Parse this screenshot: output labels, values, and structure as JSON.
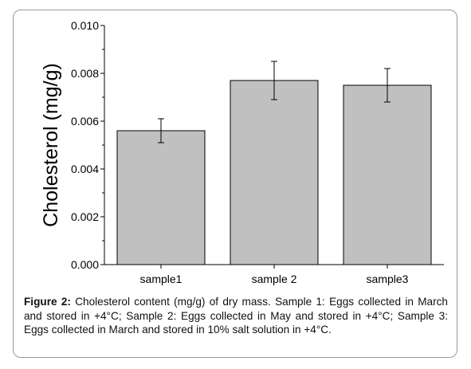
{
  "chart_data": {
    "type": "bar",
    "categories": [
      "sample1",
      "sample 2",
      "sample3"
    ],
    "values": [
      0.0056,
      0.0077,
      0.0075
    ],
    "errors": [
      0.0005,
      0.0008,
      0.0007
    ],
    "ylabel": "Cholesterol (mg/g)",
    "xlabel": "",
    "ylim": [
      0,
      0.01
    ],
    "yticks": [
      "0.000",
      "0.002",
      "0.004",
      "0.006",
      "0.008",
      "0.010"
    ],
    "bar_color": "#c0c0c0",
    "grid": false
  },
  "caption": {
    "label": "Figure 2:",
    "text": "Cholesterol content (mg/g) of dry mass. Sample 1: Eggs collected in March and stored in +4°C; Sample 2: Eggs collected in May and stored in +4°C; Sample 3: Eggs collected in March and stored in 10% salt solution in +4°C."
  }
}
